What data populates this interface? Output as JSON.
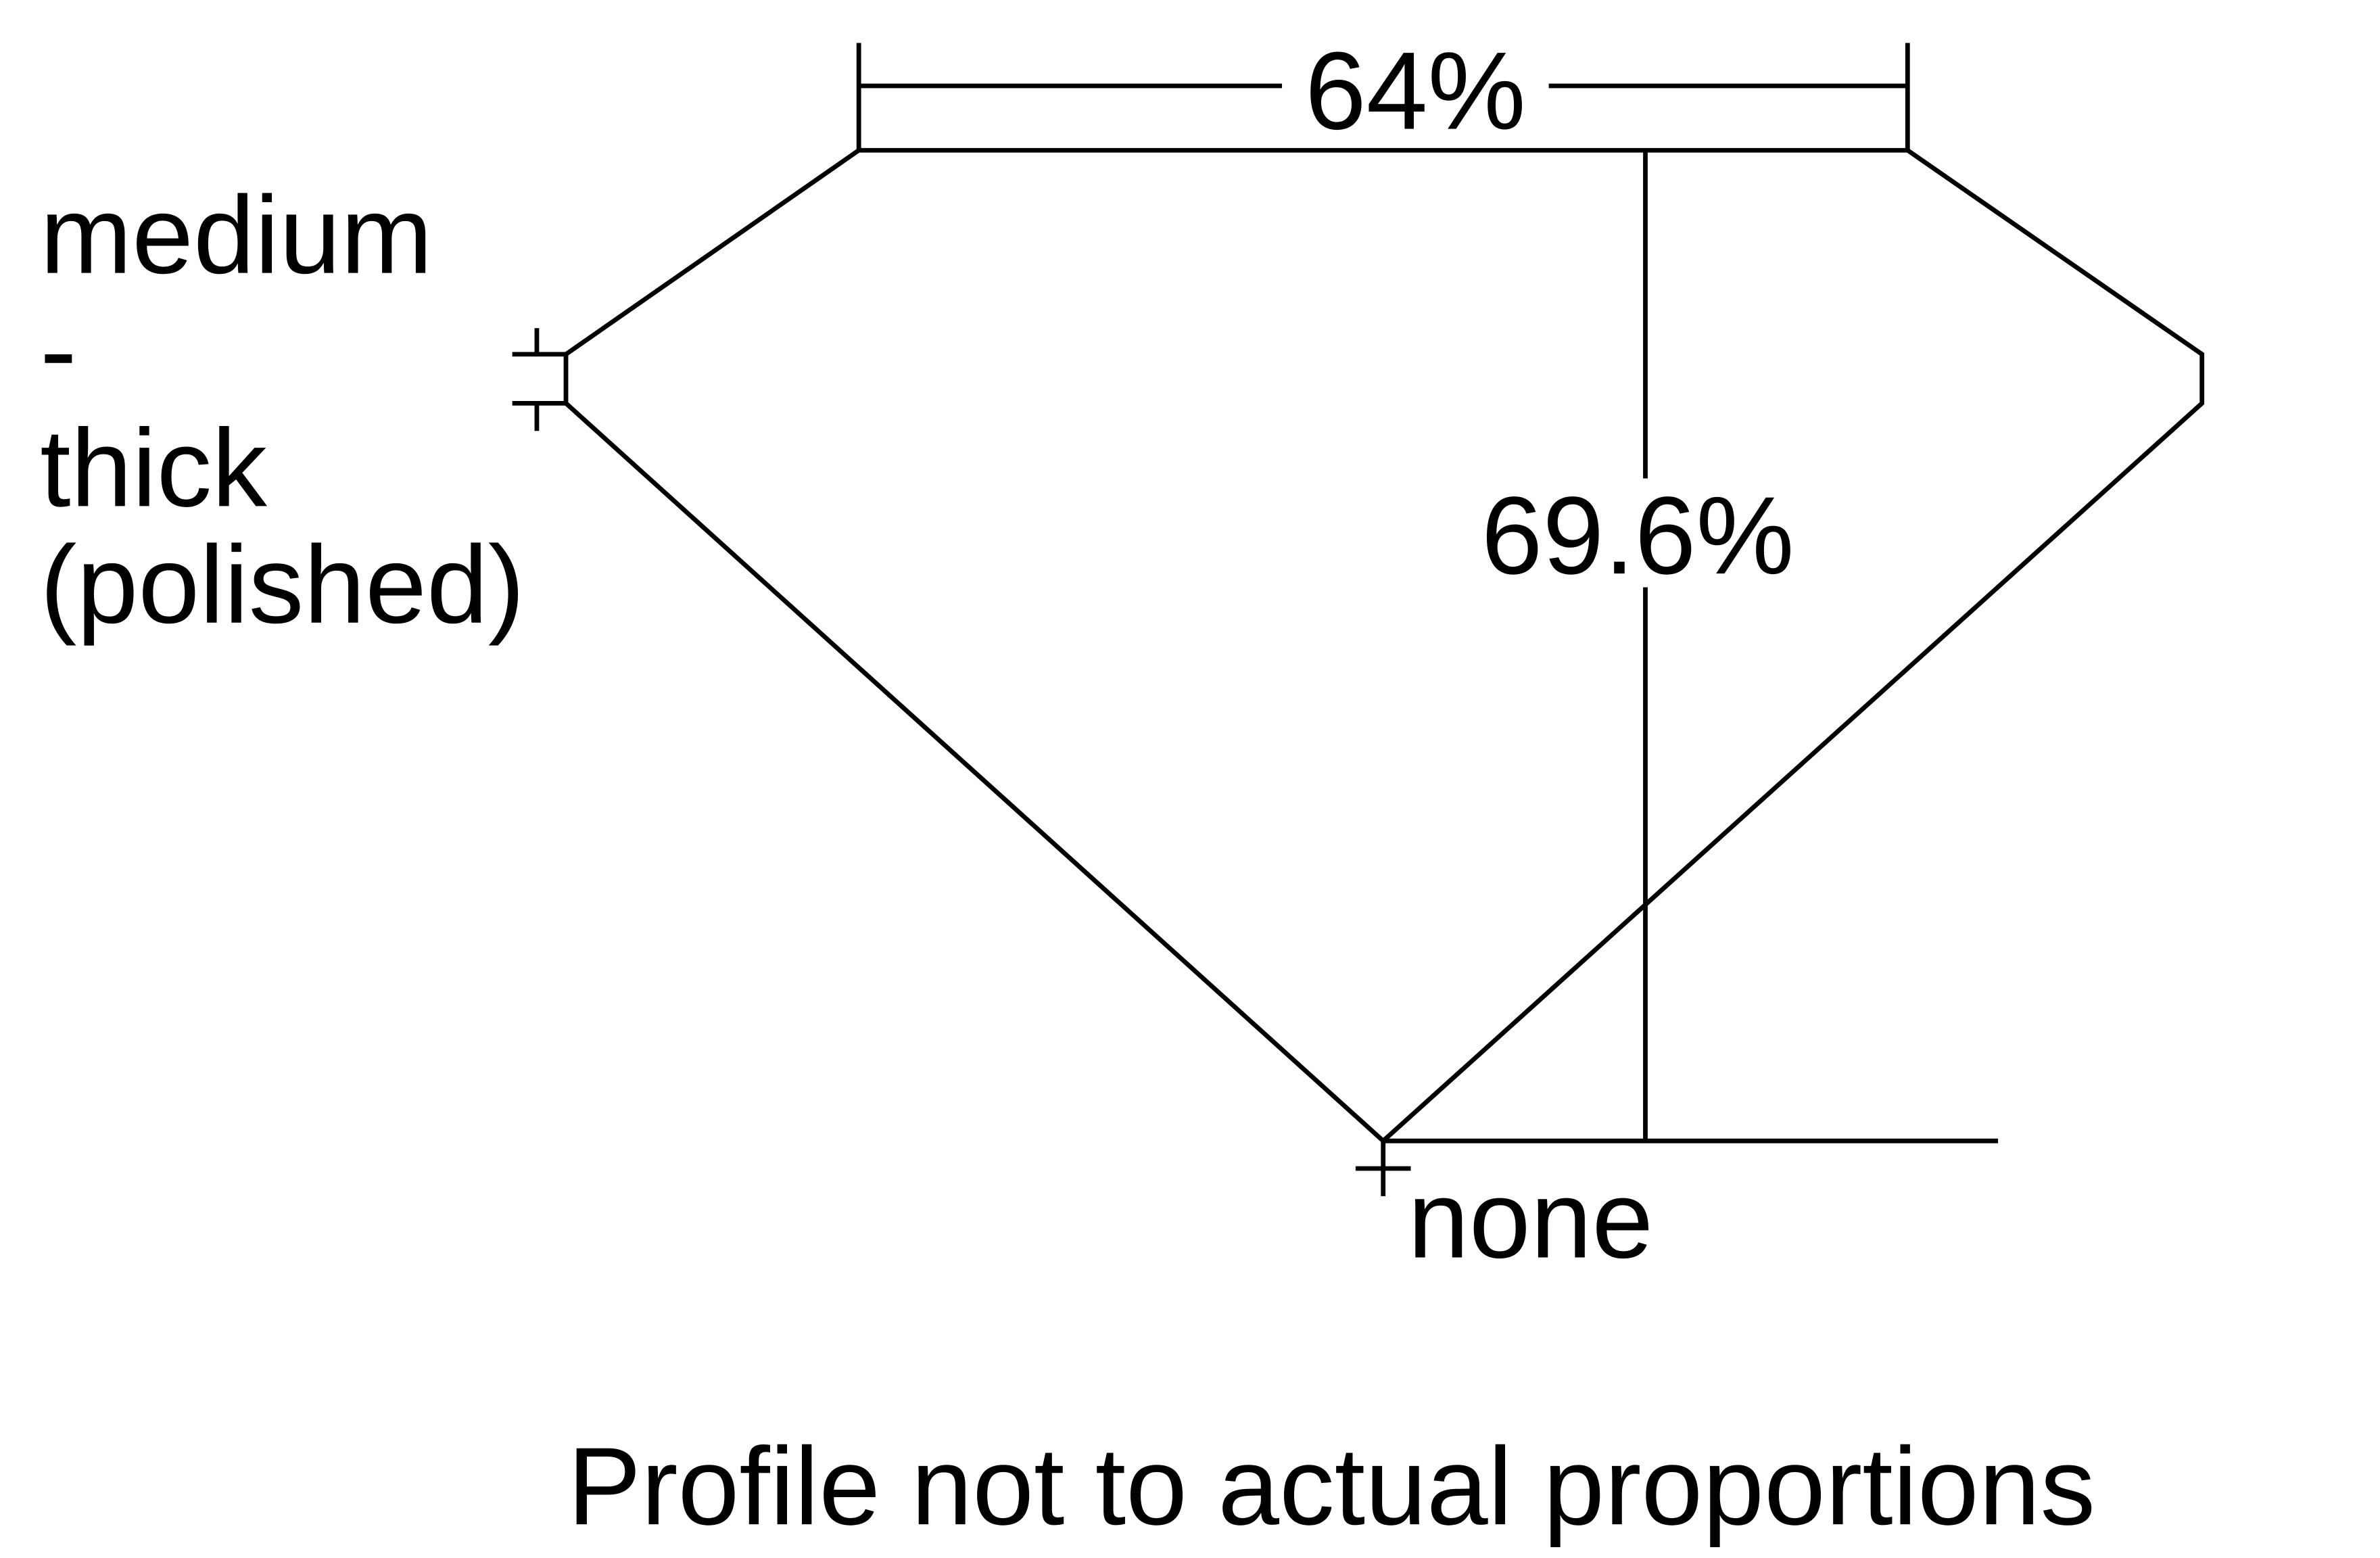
{
  "diagram": {
    "table_percentage": "64%",
    "depth_percentage": "69.6%",
    "girdle_label": [
      "medium",
      "-",
      "thick",
      "(polished)"
    ],
    "culet_label": "none",
    "footnote": "Profile not to actual proportions",
    "line_color": "#000000",
    "background_color": "#ffffff"
  }
}
